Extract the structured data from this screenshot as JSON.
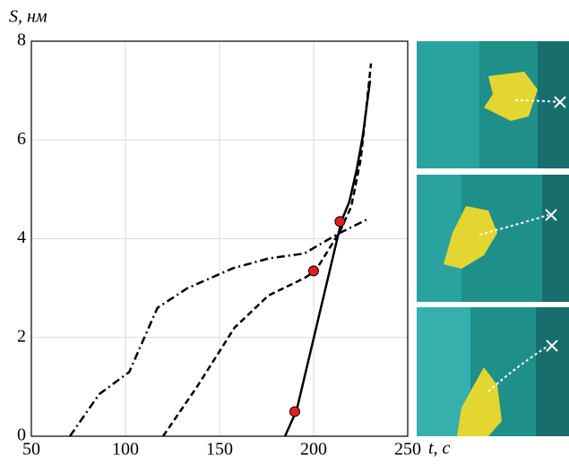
{
  "chart_data": {
    "type": "line",
    "xlabel": "t, с",
    "ylabel": "S, нм",
    "xlim": [
      50,
      250
    ],
    "ylim": [
      0,
      8
    ],
    "xticks": [
      50,
      100,
      150,
      200,
      250
    ],
    "yticks": [
      0,
      2,
      4,
      6,
      8
    ],
    "grid": true,
    "series": [
      {
        "color": "#000000",
        "style": "solid",
        "x": [
          184.8,
          191,
          214.8,
          219,
          222.9,
          226.2,
          228.6,
          230
        ],
        "values": [
          0,
          0.53,
          4.36,
          4.75,
          5.4,
          6.1,
          6.8,
          7.2
        ]
      },
      {
        "color": "#000000",
        "style": "dashed",
        "x": [
          120,
          138,
          158,
          176,
          195,
          201,
          214,
          220,
          225,
          228,
          230.5
        ],
        "values": [
          0,
          1.0,
          2.2,
          2.85,
          3.2,
          3.35,
          4.15,
          4.65,
          5.6,
          6.65,
          7.55
        ]
      },
      {
        "color": "#000000",
        "style": "dashdot",
        "x": [
          70.5,
          86,
          102,
          117,
          133,
          157,
          176,
          195,
          213,
          229
        ],
        "values": [
          0,
          0.85,
          1.3,
          2.6,
          3.0,
          3.4,
          3.6,
          3.7,
          4.1,
          4.4
        ]
      },
      {
        "color": "#e02020",
        "style": "markers",
        "x": [
          190,
          200,
          214
        ],
        "values": [
          0.5,
          3.35,
          4.35
        ]
      }
    ]
  }
}
